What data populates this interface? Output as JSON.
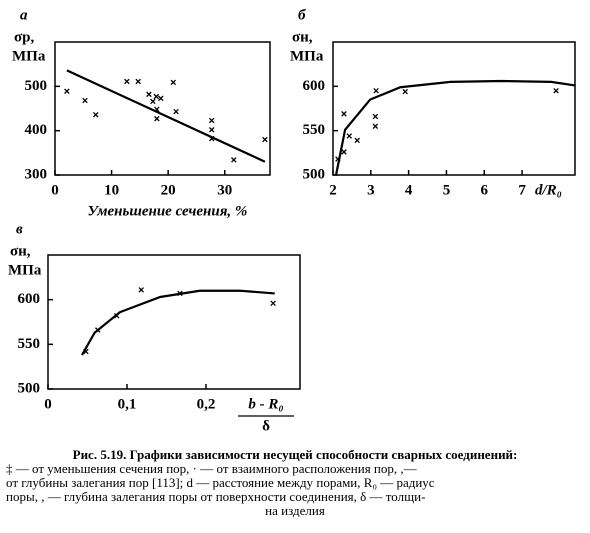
{
  "chart_data": [
    {
      "type": "scatter",
      "label": "а",
      "y_label": "σр,",
      "y_unit": "МПа",
      "x_label": "Уменьшение сечения, %",
      "xlim": [
        0,
        38
      ],
      "ylim": [
        300,
        600
      ],
      "xticks": [
        0,
        10,
        20,
        30
      ],
      "yticks": [
        300,
        400,
        500
      ],
      "points": {
        "x": [
          2.1,
          5.3,
          7.2,
          12.7,
          14.7,
          16.6,
          17.3,
          17.9,
          18.7,
          18.0,
          18.0,
          20.9,
          21.4,
          27.7,
          27.7,
          27.7,
          31.6,
          37.1
        ],
        "y": [
          489,
          468,
          436,
          511,
          511,
          482,
          466,
          477,
          473,
          448,
          427,
          509,
          443,
          423,
          402,
          382,
          334,
          380
        ]
      },
      "curve": {
        "x": [
          2.1,
          37.1
        ],
        "y": [
          536,
          330
        ]
      },
      "color": "#000000"
    },
    {
      "type": "scatter",
      "label": "б",
      "y_label": "σн,",
      "y_unit": "МПа",
      "x_label": "d/R₀",
      "xlim": [
        2,
        8.4
      ],
      "ylim": [
        500,
        650
      ],
      "xticks": [
        2,
        3,
        4,
        5,
        6,
        7
      ],
      "yticks": [
        500,
        550,
        600
      ],
      "points": {
        "x": [
          2.13,
          2.29,
          2.29,
          2.43,
          2.64,
          3.12,
          3.12,
          3.14,
          3.91,
          7.9
        ],
        "y": [
          518,
          526,
          569,
          544,
          539,
          566,
          555,
          595,
          594,
          595
        ]
      },
      "curve": {
        "x": [
          2.08,
          2.32,
          2.98,
          3.78,
          5.11,
          6.44,
          7.77,
          8.4
        ],
        "y": [
          500,
          551,
          585,
          599,
          605,
          606,
          605,
          601
        ]
      },
      "color": "#000000"
    },
    {
      "type": "scatter",
      "label": "в",
      "y_label": "σн,",
      "y_unit": "МПа",
      "x_label_numerator": "b - R₀",
      "x_label_denominator": "δ",
      "xlim": [
        0,
        0.319
      ],
      "ylim": [
        500,
        650
      ],
      "xticks": [
        0,
        {
          "value": 0.1,
          "label": "0,1"
        },
        {
          "value": 0.2,
          "label": "0,2"
        }
      ],
      "yticks": [
        500,
        550,
        600
      ],
      "points": {
        "x": [
          0.048,
          0.063,
          0.087,
          0.118,
          0.167,
          0.285
        ],
        "y": [
          542,
          566,
          582,
          611,
          607,
          596
        ]
      },
      "curve": {
        "x": [
          0.043,
          0.059,
          0.091,
          0.142,
          0.192,
          0.243,
          0.287
        ],
        "y": [
          538,
          563,
          586,
          603,
          610,
          610,
          607
        ]
      },
      "color": "#000000"
    }
  ],
  "caption": {
    "title": "Рис. 5.19. Графики зависимости несущей способности сварных соединений:",
    "lines": [
      "‡ — от уменьшения сечения пор, · — от взаимного расположения пор, ,—",
      "от глубины залегания пор [113]; d — расстояние между порами, R₀ — радиус",
      "поры, , — глубина залегания поры от поверхности соединения, δ — толщи-",
      "на изделия"
    ]
  }
}
